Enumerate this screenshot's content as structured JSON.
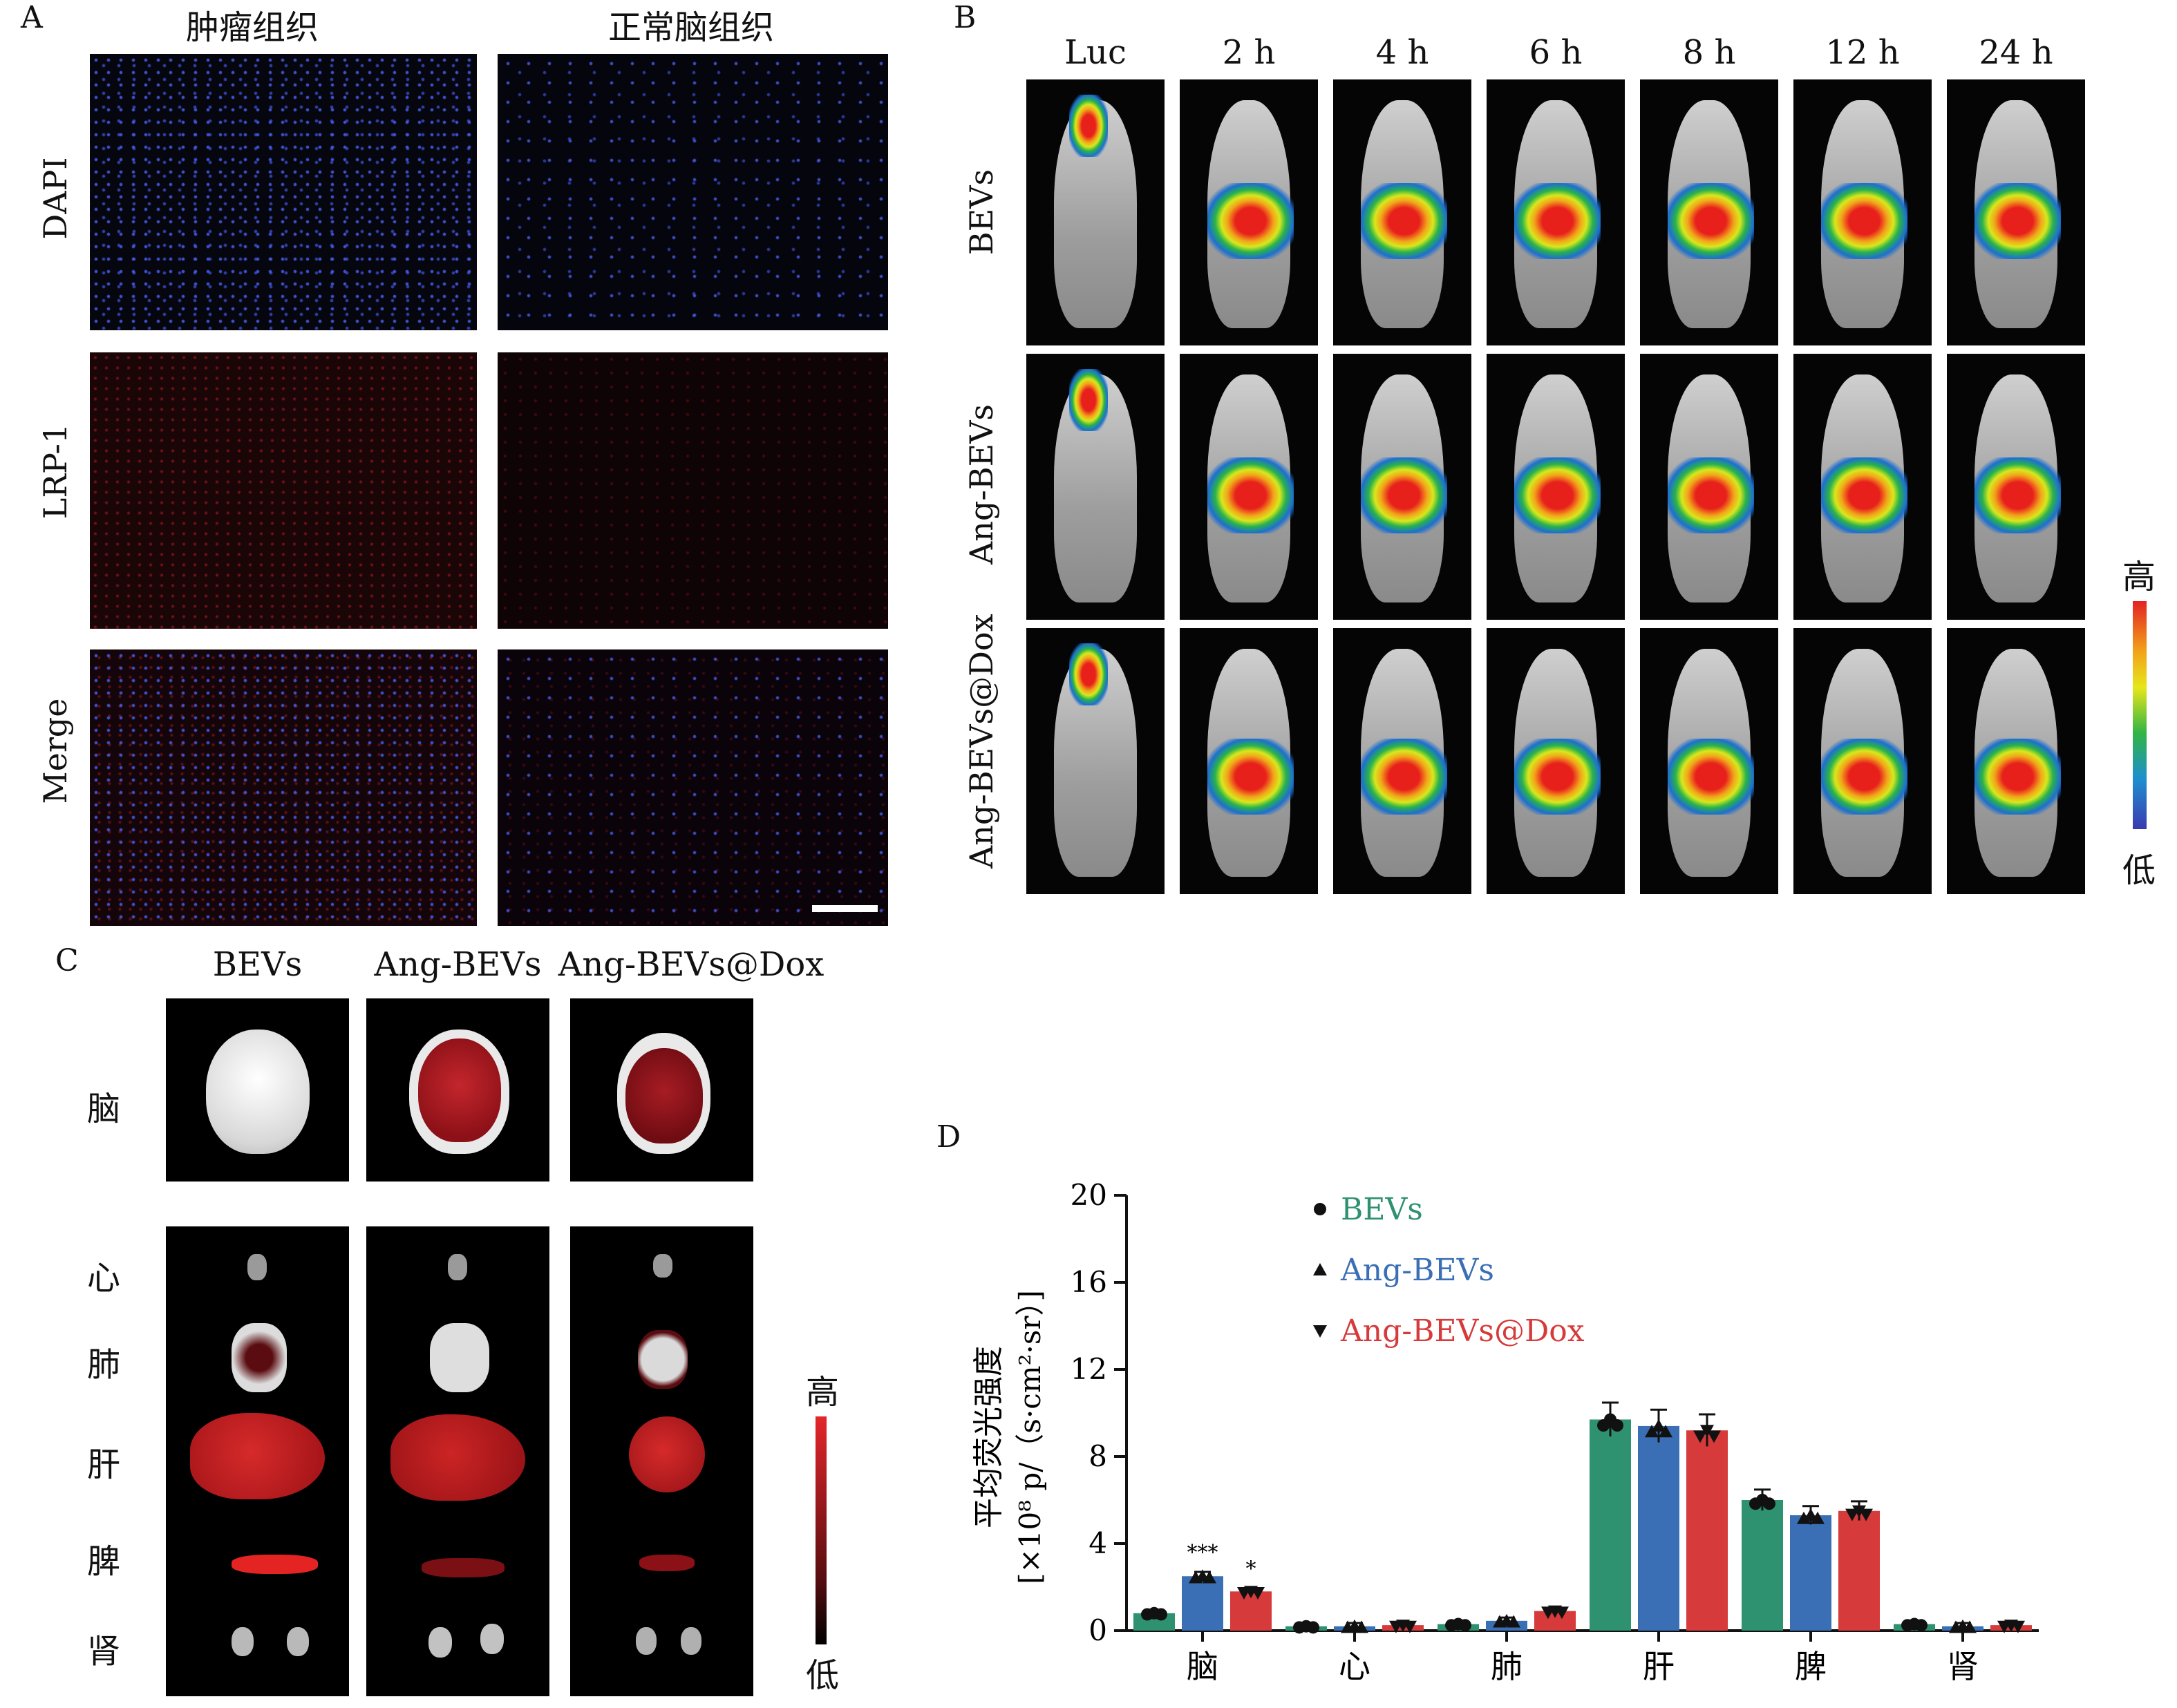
{
  "panels": {
    "A": {
      "letter": "A",
      "columns": [
        "肿瘤组织",
        "正常脑组织"
      ],
      "rows": [
        "DAPI",
        "LRP-1",
        "Merge"
      ]
    },
    "B": {
      "letter": "B",
      "columns": [
        "Luc",
        "2 h",
        "4 h",
        "6 h",
        "8 h",
        "12 h",
        "24 h"
      ],
      "rows": [
        "BEVs",
        "Ang-BEVs",
        "Ang-BEVs@Dox"
      ],
      "colorbar": {
        "high": "高",
        "low": "低"
      }
    },
    "C": {
      "letter": "C",
      "columns": [
        "BEVs",
        "Ang-BEVs",
        "Ang-BEVs@Dox"
      ],
      "brain_label": "脑",
      "organ_labels": [
        "心",
        "肺",
        "肝",
        "脾",
        "肾"
      ],
      "colorbar": {
        "high": "高",
        "low": "低"
      }
    },
    "D": {
      "letter": "D"
    }
  },
  "chart_data": {
    "type": "bar",
    "categories": [
      "脑",
      "心",
      "肺",
      "肝",
      "脾",
      "肾"
    ],
    "series": [
      {
        "name": "BEVs",
        "color": "#2e9170",
        "marker": "circle",
        "values": [
          0.8,
          0.2,
          0.3,
          9.7,
          6.0,
          0.3
        ]
      },
      {
        "name": "Ang-BEVs",
        "color": "#3a6fb5",
        "marker": "triangle-up",
        "values": [
          2.5,
          0.2,
          0.45,
          9.4,
          5.3,
          0.2
        ]
      },
      {
        "name": "Ang-BEVs@Dox",
        "color": "#d63a3a",
        "marker": "triangle-down",
        "values": [
          1.8,
          0.25,
          0.9,
          9.2,
          5.5,
          0.25
        ]
      }
    ],
    "ylabel_line1": "平均荧光强度",
    "ylabel_line2": "[×10⁸ p/（s·cm²·sr）]",
    "ylim": [
      0,
      20
    ],
    "yticks": [
      "0",
      "4",
      "8",
      "12",
      "16",
      "20"
    ],
    "legend_position": "top-center",
    "annotations": [
      {
        "category": "脑",
        "series": "Ang-BEVs",
        "text": "***"
      },
      {
        "category": "脑",
        "series": "Ang-BEVs@Dox",
        "text": "*"
      }
    ]
  }
}
